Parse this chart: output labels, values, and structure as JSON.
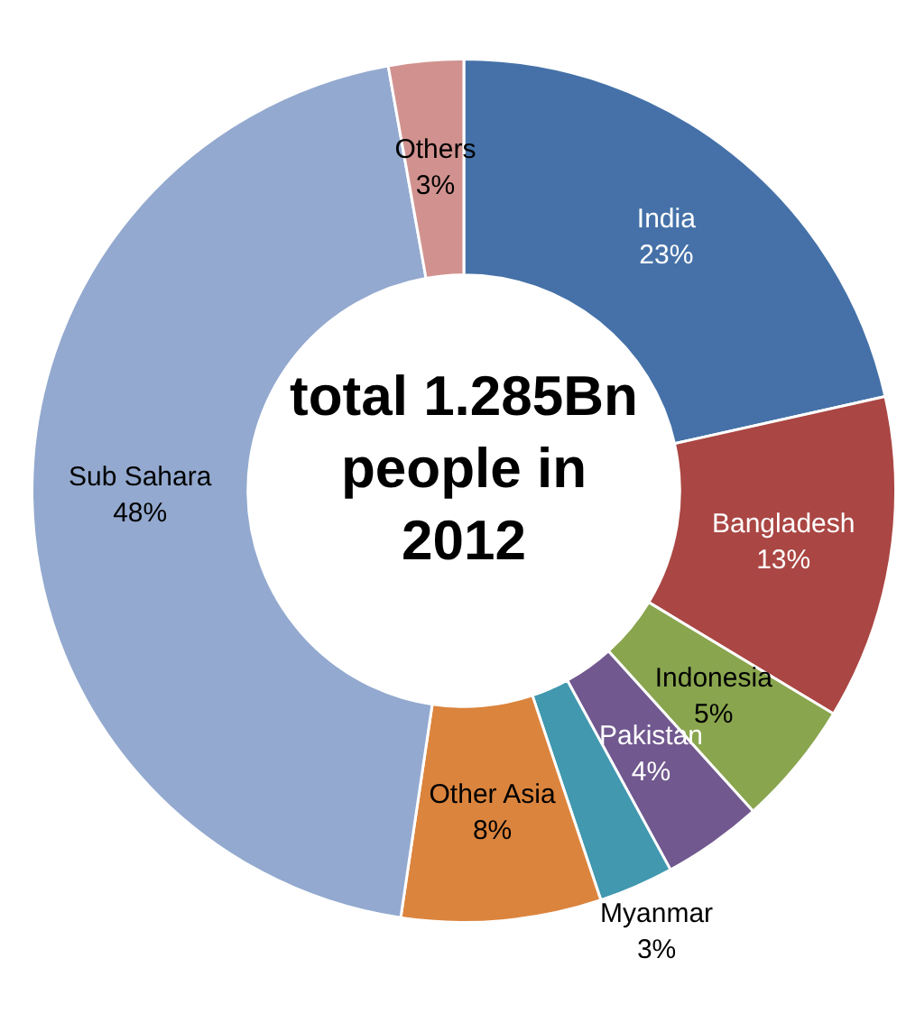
{
  "chart_data": {
    "type": "donut",
    "title": "total 1.285Bn people in 2012",
    "categories": [
      "India",
      "Bangladesh",
      "Indonesia",
      "Pakistan",
      "Myanmar",
      "Other Asia",
      "Sub Sahara",
      "Others"
    ],
    "values": [
      23,
      13,
      5,
      4,
      3,
      8,
      48,
      3
    ],
    "value_labels": [
      "23%",
      "13%",
      "5%",
      "4%",
      "3%",
      "8%",
      "48%",
      "3%"
    ],
    "colors": [
      "#4571a8",
      "#aa4643",
      "#89a54e",
      "#71588f",
      "#4198af",
      "#db843d",
      "#93a9cf",
      "#d1928f"
    ],
    "legend": false
  }
}
